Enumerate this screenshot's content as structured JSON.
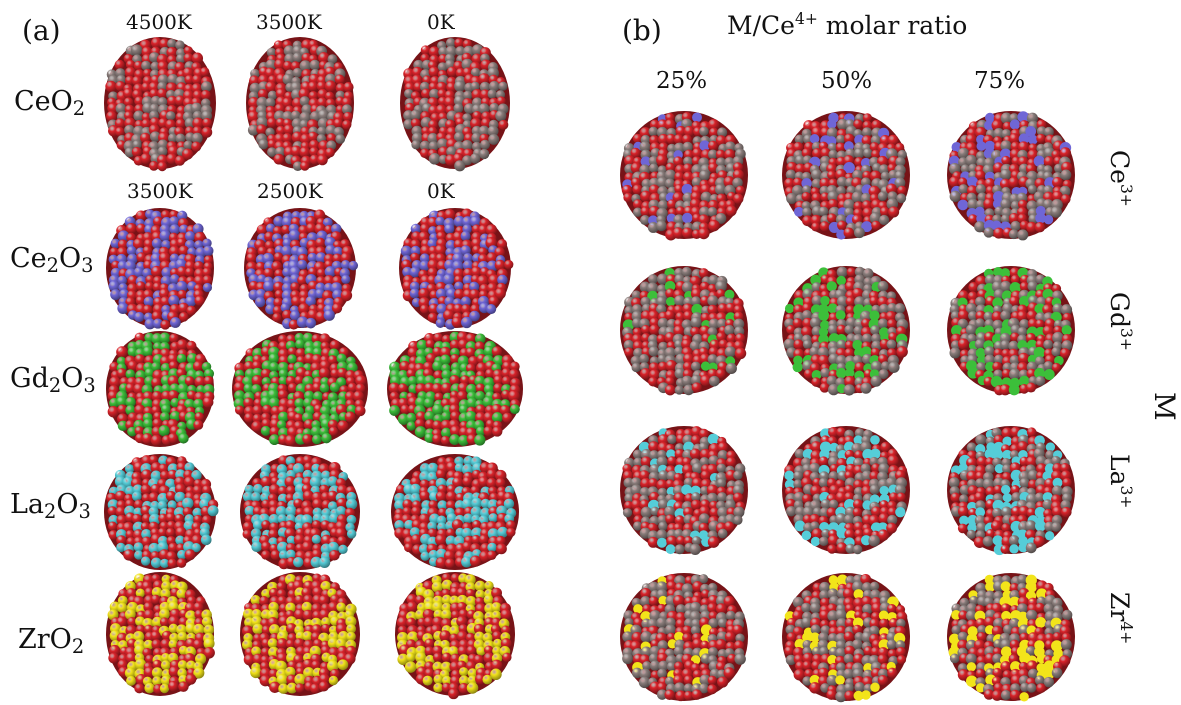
{
  "panel_a": {
    "tag": "(a)",
    "temps_ceo2": [
      "4500K",
      "3500K",
      "0K"
    ],
    "temps_others": [
      "3500K",
      "2500K",
      "0K"
    ],
    "rows": [
      {
        "base": "CeO",
        "sub": "2",
        "tail": ""
      },
      {
        "base": "Ce",
        "sub": "2",
        "tail": "O",
        "sub2": "3"
      },
      {
        "base": "Gd",
        "sub": "2",
        "tail": "O",
        "sub2": "3"
      },
      {
        "base": "La",
        "sub": "2",
        "tail": "O",
        "sub2": "3"
      },
      {
        "base": "ZrO",
        "sub": "2",
        "tail": ""
      }
    ]
  },
  "panel_b": {
    "tag": "(b)",
    "title_pre": "M/Ce",
    "title_sup": "4+",
    "title_post": " molar ratio",
    "ratios": [
      "25%",
      "50%",
      "75%"
    ],
    "dopants": [
      {
        "el": "Ce",
        "charge": "3+"
      },
      {
        "el": "Gd",
        "charge": "3+"
      },
      {
        "el": "La",
        "charge": "3+"
      },
      {
        "el": "Zr",
        "charge": "4+"
      }
    ],
    "axis_label": "M"
  },
  "colors": {
    "oxygen": "#d9232a",
    "cerium": "#8a7d7b",
    "ce3": "#6f66d6",
    "gadolinium": "#3cbf3a",
    "lanthanum": "#55cdd8",
    "zirconium": "#f2e41a"
  }
}
